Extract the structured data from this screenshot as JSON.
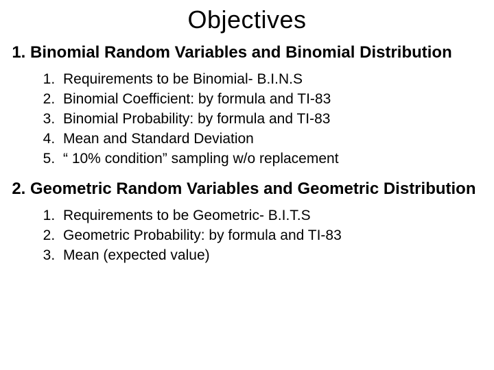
{
  "title": "Objectives",
  "colors": {
    "background": "#ffffff",
    "text": "#000000"
  },
  "typography": {
    "title_fontsize": 36,
    "heading_fontsize": 24,
    "body_fontsize": 21,
    "font_family": "Arial"
  },
  "sections": [
    {
      "heading": "Binomial Random Variables and Binomial Distribution",
      "items": [
        "Requirements to be Binomial- B.I.N.S",
        "Binomial Coefficient: by formula and TI-83",
        "Binomial Probability: by formula and TI-83",
        "Mean and Standard Deviation",
        "“ 10% condition” sampling w/o replacement"
      ]
    },
    {
      "heading": "Geometric Random Variables and Geometric Distribution",
      "items": [
        "Requirements to be Geometric- B.I.T.S",
        "Geometric Probability: by formula and TI-83",
        "Mean (expected value)"
      ]
    }
  ]
}
